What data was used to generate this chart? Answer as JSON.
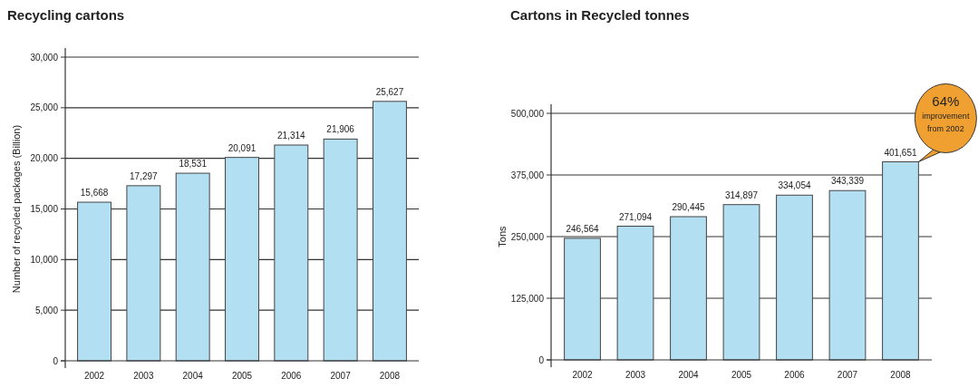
{
  "chart_data": [
    {
      "type": "bar",
      "title": "Recycling cartons",
      "ylabel": "Number of recycled packages (Billion)",
      "categories": [
        "2002",
        "2003",
        "2004",
        "2005",
        "2006",
        "2007",
        "2008"
      ],
      "values": [
        15668,
        17297,
        18531,
        20091,
        21314,
        21906,
        25627
      ],
      "value_labels": [
        "15,668",
        "17,297",
        "18,531",
        "20,091",
        "21,314",
        "21,906",
        "25,627"
      ],
      "color": "#b3dff2",
      "ylim": [
        0,
        30000
      ],
      "yticks": [
        {
          "value": 0,
          "label": "0"
        },
        {
          "value": 5000,
          "label": "5,000"
        },
        {
          "value": 10000,
          "label": "10,000"
        },
        {
          "value": 15000,
          "label": "15,000"
        },
        {
          "value": 20000,
          "label": "20,000"
        },
        {
          "value": 25000,
          "label": "25,000"
        },
        {
          "value": 30000,
          "label": "30,000"
        }
      ],
      "grid": "y"
    },
    {
      "type": "bar",
      "title": "Cartons in Recycled tonnes",
      "ylabel": "Tons",
      "categories": [
        "2002",
        "2003",
        "2004",
        "2005",
        "2006",
        "2007",
        "2008"
      ],
      "values": [
        246564,
        271094,
        290445,
        314897,
        334054,
        343339,
        401651
      ],
      "value_labels": [
        "246,564",
        "271,094",
        "290,445",
        "314,897",
        "334,054",
        "343,339",
        "401,651"
      ],
      "color": "#b3dff2",
      "ylim": [
        0,
        500000
      ],
      "yticks": [
        {
          "value": 0,
          "label": "0"
        },
        {
          "value": 125000,
          "label": "125,000"
        },
        {
          "value": 250000,
          "label": "250,000"
        },
        {
          "value": 375000,
          "label": "375,000"
        },
        {
          "value": 500000,
          "label": "500,000"
        }
      ],
      "grid": "y",
      "annotations": [
        {
          "text": "64% improvement from 2002",
          "x": "2008",
          "y": 401651
        }
      ]
    }
  ]
}
